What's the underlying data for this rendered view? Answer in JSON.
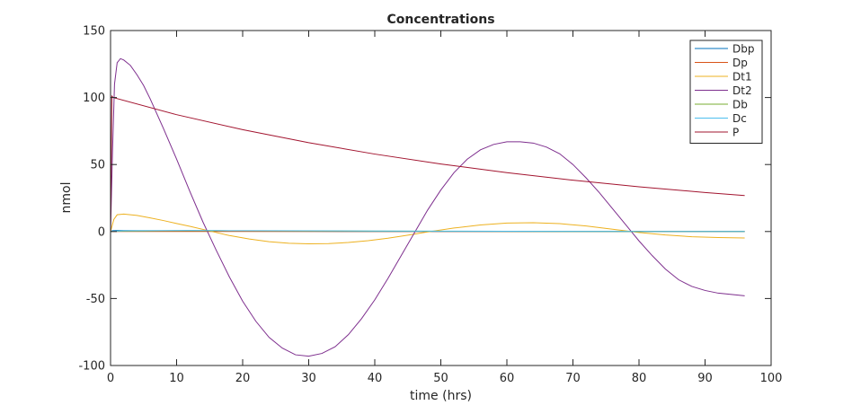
{
  "chart_data": {
    "type": "line",
    "title": "Concentrations",
    "xlabel": "time (hrs)",
    "ylabel": "nmol",
    "xlim": [
      0,
      100
    ],
    "ylim": [
      -100,
      150
    ],
    "xticks": [
      0,
      10,
      20,
      30,
      40,
      50,
      60,
      70,
      80,
      90,
      100
    ],
    "yticks": [
      -100,
      -50,
      0,
      50,
      100,
      150
    ],
    "grid": false,
    "legend_position": "top-right",
    "series": [
      {
        "name": "Dbp",
        "color": "#0072BD",
        "x": [
          0,
          0.3,
          1,
          2,
          4,
          8,
          12,
          16,
          20,
          30,
          40,
          50,
          60,
          70,
          80,
          90,
          96
        ],
        "y": [
          0,
          0.6,
          0.8,
          0.7,
          0.6,
          0.5,
          0.4,
          0.3,
          0.2,
          0.1,
          0,
          0,
          0,
          0,
          0,
          0,
          0
        ]
      },
      {
        "name": "Dp",
        "color": "#D95319",
        "x": [
          0,
          10,
          20,
          30,
          40,
          50,
          60,
          70,
          80,
          90,
          96
        ],
        "y": [
          0,
          0,
          0,
          0,
          0,
          0,
          0,
          0,
          0,
          0,
          0
        ]
      },
      {
        "name": "Dt1",
        "color": "#EDB120",
        "x": [
          0,
          0.5,
          1,
          2,
          4,
          6,
          8,
          10,
          12,
          15,
          18,
          21,
          24,
          27,
          30,
          33,
          36,
          39,
          42,
          45,
          48,
          52,
          56,
          60,
          64,
          68,
          72,
          76,
          80,
          84,
          88,
          92,
          96
        ],
        "y": [
          0,
          9,
          12.5,
          13,
          12,
          10.2,
          8.2,
          6,
          3.9,
          0.4,
          -3.0,
          -5.6,
          -7.6,
          -8.8,
          -9.2,
          -9.0,
          -8.2,
          -6.8,
          -5.0,
          -2.7,
          -0.3,
          2.6,
          4.9,
          6.3,
          6.6,
          5.9,
          4.1,
          1.7,
          -0.7,
          -2.6,
          -3.9,
          -4.5,
          -4.8
        ]
      },
      {
        "name": "Dt2",
        "color": "#7E2F8E",
        "x": [
          0,
          0.3,
          0.6,
          1,
          1.5,
          2,
          3,
          4,
          5,
          6,
          8,
          10,
          12,
          14,
          16,
          18,
          20,
          22,
          24,
          26,
          28,
          30,
          32,
          34,
          36,
          38,
          40,
          42,
          44,
          46,
          48,
          50,
          52,
          54,
          56,
          58,
          60,
          62,
          64,
          66,
          68,
          70,
          72,
          74,
          76,
          78,
          80,
          82,
          84,
          86,
          88,
          90,
          92,
          94,
          96
        ],
        "y": [
          0,
          60,
          110,
          126,
          129,
          128,
          124,
          117,
          109,
          99,
          77,
          54,
          30,
          7,
          -14,
          -34,
          -52,
          -67,
          -79,
          -87,
          -92,
          -93,
          -91,
          -86,
          -77,
          -65,
          -51,
          -35,
          -18,
          -1,
          16,
          31,
          44,
          54,
          61,
          65,
          67,
          67,
          66,
          63,
          58,
          50,
          40,
          29,
          17,
          5,
          -7,
          -18,
          -28,
          -36,
          -41,
          -44,
          -46,
          -47,
          -48
        ]
      },
      {
        "name": "Db",
        "color": "#77AC30",
        "x": [
          0,
          0.5,
          2,
          5,
          8,
          12,
          16,
          20,
          30,
          40,
          50,
          60,
          70,
          80,
          90,
          96
        ],
        "y": [
          0,
          0.2,
          0.3,
          0.4,
          0.5,
          0.6,
          0.6,
          0.5,
          0.4,
          0.3,
          0.2,
          0.1,
          0,
          0,
          0,
          0
        ]
      },
      {
        "name": "Dc",
        "color": "#4DBEEE",
        "x": [
          0,
          0.5,
          2,
          5,
          8,
          12,
          16,
          20,
          30,
          40,
          50,
          60,
          70,
          80,
          90,
          96
        ],
        "y": [
          0,
          0.3,
          0.5,
          0.6,
          0.7,
          0.8,
          0.7,
          0.6,
          0.5,
          0.4,
          0.3,
          0.2,
          0.1,
          0,
          0,
          0
        ]
      },
      {
        "name": "P",
        "color": "#A2142F",
        "x": [
          0,
          0.2,
          0.4,
          10,
          20,
          30,
          40,
          50,
          60,
          70,
          80,
          90,
          96
        ],
        "y": [
          0,
          101,
          100,
          87.2,
          76.0,
          66.3,
          57.8,
          50.4,
          43.9,
          38.3,
          33.4,
          29.1,
          26.8
        ]
      }
    ]
  }
}
